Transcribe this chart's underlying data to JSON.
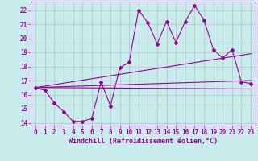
{
  "xlabel": "Windchill (Refroidissement éolien,°C)",
  "bg_color": "#c8ecec",
  "line_color": "#990099",
  "grid_color": "#aaaaaa",
  "xlim": [
    -0.5,
    23.5
  ],
  "ylim": [
    13.8,
    22.6
  ],
  "xticks": [
    0,
    1,
    2,
    3,
    4,
    5,
    6,
    7,
    8,
    9,
    10,
    11,
    12,
    13,
    14,
    15,
    16,
    17,
    18,
    19,
    20,
    21,
    22,
    23
  ],
  "yticks": [
    14,
    15,
    16,
    17,
    18,
    19,
    20,
    21,
    22
  ],
  "main_x": [
    0,
    1,
    2,
    3,
    4,
    5,
    6,
    7,
    8,
    9,
    10,
    11,
    12,
    13,
    14,
    15,
    16,
    17,
    18,
    19,
    20,
    21,
    22,
    23
  ],
  "main_y": [
    16.5,
    16.3,
    15.4,
    14.8,
    14.1,
    14.1,
    14.3,
    16.9,
    15.2,
    17.9,
    18.3,
    22.0,
    21.1,
    19.6,
    21.2,
    19.7,
    21.2,
    22.3,
    21.3,
    19.2,
    18.6,
    19.2,
    16.9,
    16.8
  ],
  "line1_x": [
    0,
    23
  ],
  "line1_y": [
    16.5,
    17.0
  ],
  "line2_x": [
    0,
    23
  ],
  "line2_y": [
    16.5,
    18.9
  ],
  "line3_x": [
    0,
    23
  ],
  "line3_y": [
    16.5,
    16.4
  ],
  "tick_fontsize": 5.5,
  "label_fontsize": 6.0,
  "marker": "D",
  "markersize": 2.0,
  "linewidth": 0.8
}
